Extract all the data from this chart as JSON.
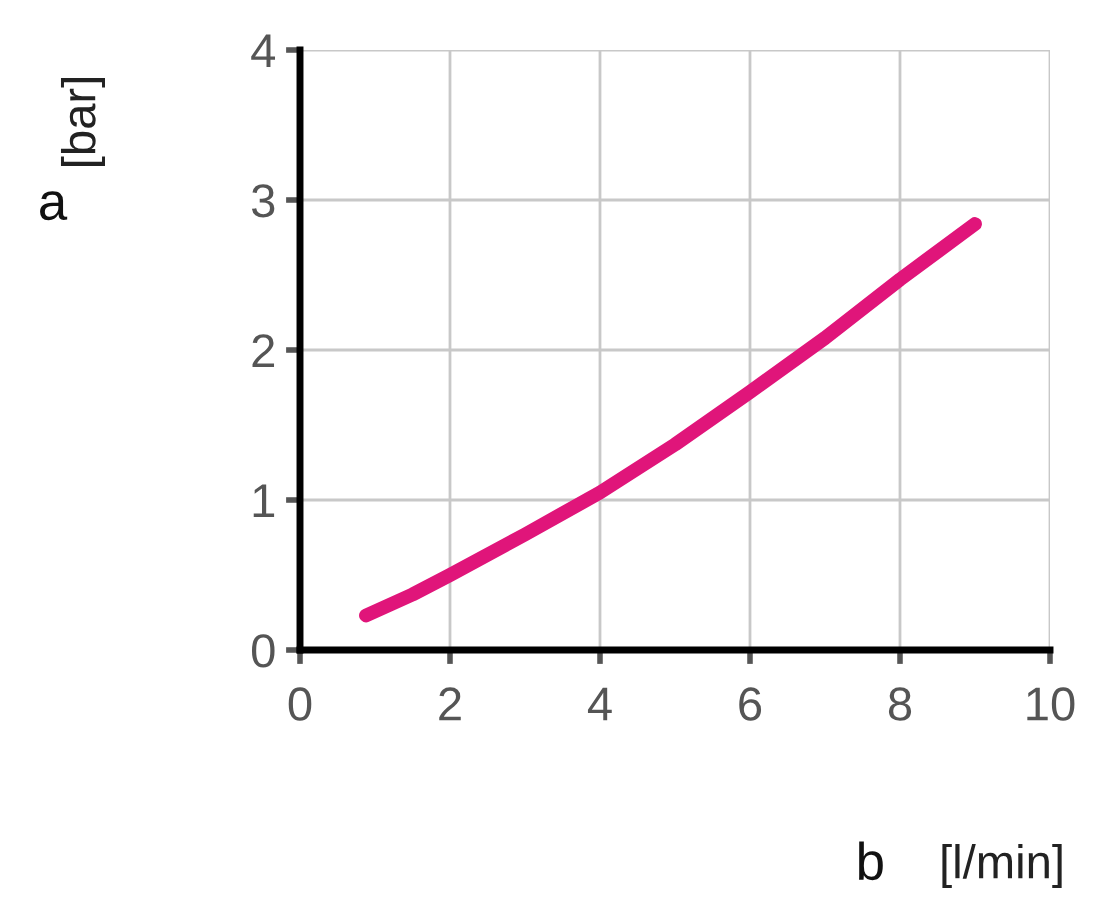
{
  "chart_data": {
    "type": "line",
    "xlabel": "[l/min]",
    "ylabel": "[bar]",
    "annotations": [
      "a",
      "b"
    ],
    "series": [
      {
        "color": "#e0157a",
        "x": [
          0.88,
          1.5,
          2,
          3,
          4,
          5,
          6,
          7,
          8,
          9
        ],
        "values": [
          0.23,
          0.37,
          0.5,
          0.77,
          1.05,
          1.37,
          1.72,
          2.08,
          2.47,
          2.84
        ]
      }
    ],
    "xlim": [
      0,
      10
    ],
    "ylim": [
      0,
      4
    ],
    "xticks": [
      0,
      2,
      4,
      6,
      8,
      10
    ],
    "yticks": [
      0,
      1,
      2,
      3,
      4
    ],
    "grid": true,
    "marker": "none",
    "line_style": "solid"
  }
}
